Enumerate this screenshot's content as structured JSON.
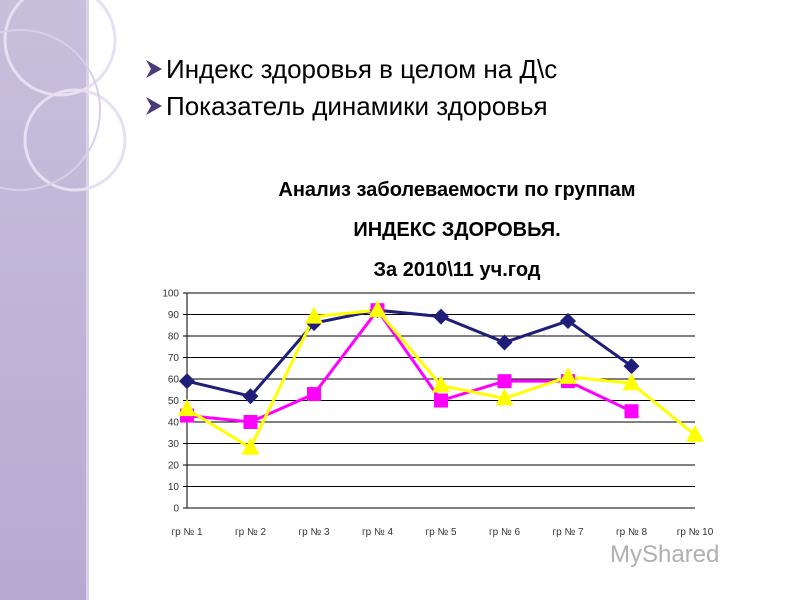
{
  "bullets": [
    "Индекс здоровья  в целом на Д\\с",
    "Показатель динамики здоровья"
  ],
  "watermark": "MyShared",
  "chart_data": {
    "type": "line",
    "title": [
      "Анализ заболеваемости по группам",
      "ИНДЕКС ЗДОРОВЬЯ.",
      "За 2010\\11 уч.год"
    ],
    "categories": [
      "гр № 1",
      "гр № 2",
      "гр № 3",
      "гр № 4",
      "гр № 5",
      "гр № 6",
      "гр № 7",
      "гр № 8",
      "гр № 10"
    ],
    "series": [
      {
        "color": "#1f1f7a",
        "marker": "diamond",
        "values": [
          59,
          52,
          86,
          92,
          89,
          77,
          87,
          66,
          null
        ]
      },
      {
        "color": "#ff00ff",
        "marker": "square",
        "values": [
          43,
          40,
          53,
          92,
          50,
          59,
          59,
          45,
          null
        ]
      },
      {
        "color": "#ffff00",
        "marker": "triangle",
        "values": [
          46,
          28,
          89,
          92,
          57,
          51,
          61,
          58,
          34
        ]
      }
    ],
    "ylim": [
      0,
      100
    ],
    "yticks": [
      0,
      10,
      20,
      30,
      40,
      50,
      60,
      70,
      80,
      90,
      100
    ],
    "grid": true
  }
}
